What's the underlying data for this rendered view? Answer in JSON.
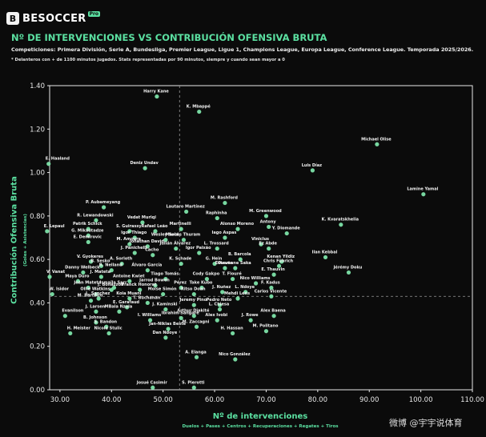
{
  "brand": {
    "name": "BESOCCER",
    "mark": "B",
    "pro": "Pro"
  },
  "header": {
    "title": "Nº DE INTERVENCIONES VS CONTRIBUCIÓN OFENSIVA BRUTA",
    "competitions": "Competiciones: Primera División, Serie A, Bundesliga, Premier League, Ligue 1, Champions League, Europa League, Conference League. Temporada 2025/2026.",
    "note": "* Delanteros con + de 1100 minutos jugados. Stats representadas por 90 minutos, siempre y cuando sean mayor a 0"
  },
  "watermark": "微博 @宇宇说体育",
  "colors": {
    "accent": "#5be0a1",
    "point": "#7de3a9",
    "background": "#0b0b0b"
  },
  "chart_data": {
    "type": "scatter",
    "title": "Nº DE INTERVENCIONES VS CONTRIBUCIÓN OFENSIVA BRUTA",
    "xlabel": "Nº de intervenciones",
    "xlabel_sub": "Duelos + Pases + Centros + Recuperaciones + Regates + Tiros",
    "ylabel": "Contribución Ofensiva Bruta",
    "ylabel_sub": "(Goles + Asistencias)",
    "xlim": [
      28,
      110
    ],
    "ylim": [
      0,
      1.4
    ],
    "xticks": [
      "30.00",
      "40.00",
      "50.00",
      "60.00",
      "70.00",
      "80.00",
      "90.00",
      "100.00",
      "110.00"
    ],
    "yticks": [
      "0.00",
      "0.20",
      "0.40",
      "0.60",
      "0.80",
      "1.00",
      "1.20",
      "1.40"
    ],
    "grid": "off",
    "reference_lines": {
      "x_mean": 53.2,
      "y_mean": 0.43
    },
    "points": [
      {
        "label": "Harry Kane",
        "x": 48.8,
        "y": 1.35
      },
      {
        "label": "K. Mbappé",
        "x": 57.0,
        "y": 1.28
      },
      {
        "label": "Michael Olise",
        "x": 91.5,
        "y": 1.13
      },
      {
        "label": "E. Haaland",
        "x": 27.8,
        "y": 1.04
      },
      {
        "label": "Deniz Undav",
        "x": 46.5,
        "y": 1.02
      },
      {
        "label": "Luis Díaz",
        "x": 79.0,
        "y": 1.01
      },
      {
        "label": "Lamine Yamal",
        "x": 100.5,
        "y": 0.9
      },
      {
        "label": "M. Rashford",
        "x": 62.0,
        "y": 0.86
      },
      {
        "label": "P. Aubameyang",
        "x": 38.5,
        "y": 0.84
      },
      {
        "label": "Lautaro Martínez",
        "x": 54.5,
        "y": 0.82
      },
      {
        "label": "M. Greenwood",
        "x": 70.0,
        "y": 0.8
      },
      {
        "label": "Raphinha",
        "x": 60.5,
        "y": 0.79
      },
      {
        "label": "R. Lewandowski",
        "x": 37.0,
        "y": 0.78
      },
      {
        "label": "Vedat Muriqi",
        "x": 46.0,
        "y": 0.77
      },
      {
        "label": "K. Kvaratskhelia",
        "x": 84.5,
        "y": 0.76
      },
      {
        "label": "Antony",
        "x": 70.5,
        "y": 0.75
      },
      {
        "label": "Patrik Schick",
        "x": 35.5,
        "y": 0.74
      },
      {
        "label": "Martinelli",
        "x": 53.5,
        "y": 0.74
      },
      {
        "label": "Alonso Moreno",
        "x": 64.5,
        "y": 0.74
      },
      {
        "label": "E. Lepaul",
        "x": 27.5,
        "y": 0.73
      },
      {
        "label": "S. Guirassy",
        "x": 43.5,
        "y": 0.73
      },
      {
        "label": "Rafael Leão",
        "x": 48.5,
        "y": 0.73
      },
      {
        "label": "Y. Diomande",
        "x": 74.0,
        "y": 0.72
      },
      {
        "label": "G. Mikautadze",
        "x": 35.5,
        "y": 0.71
      },
      {
        "label": "Igor Thiago",
        "x": 44.5,
        "y": 0.7
      },
      {
        "label": "Iago Aspas",
        "x": 62.0,
        "y": 0.7
      },
      {
        "label": "Wesley Said",
        "x": 50.5,
        "y": 0.69
      },
      {
        "label": "Marcus Thuram",
        "x": 54.0,
        "y": 0.69
      },
      {
        "label": "E. Demirovic",
        "x": 35.5,
        "y": 0.68
      },
      {
        "label": "M. Amoura",
        "x": 43.5,
        "y": 0.67
      },
      {
        "label": "Viniclus",
        "x": 69.0,
        "y": 0.67
      },
      {
        "label": "Jonathan David",
        "x": 47.0,
        "y": 0.66
      },
      {
        "label": "Julián Álvarez",
        "x": 52.5,
        "y": 0.65
      },
      {
        "label": "L. Trossard",
        "x": 60.5,
        "y": 0.65
      },
      {
        "label": "Ez Abde",
        "x": 70.5,
        "y": 0.65
      },
      {
        "label": "J. Panichelli",
        "x": 44.5,
        "y": 0.63
      },
      {
        "label": "Igor Paixão",
        "x": 57.0,
        "y": 0.63
      },
      {
        "label": "Cacho",
        "x": 48.0,
        "y": 0.62
      },
      {
        "label": "Ilan Kebbal",
        "x": 81.5,
        "y": 0.61
      },
      {
        "label": "B. Barcola",
        "x": 65.0,
        "y": 0.6
      },
      {
        "label": "V. Gyokeres",
        "x": 36.0,
        "y": 0.59
      },
      {
        "label": "Kenan Yildiz",
        "x": 73.0,
        "y": 0.59
      },
      {
        "label": "A. Sorloth",
        "x": 42.0,
        "y": 0.58
      },
      {
        "label": "K. Schade",
        "x": 53.5,
        "y": 0.58
      },
      {
        "label": "G. Hein",
        "x": 60.0,
        "y": 0.58
      },
      {
        "label": "B. Sesko",
        "x": 38.0,
        "y": 0.57
      },
      {
        "label": "Chris Führich",
        "x": 72.5,
        "y": 0.57
      },
      {
        "label": "Estevão",
        "x": 62.0,
        "y": 0.56
      },
      {
        "label": "Ousmane Saka",
        "x": 64.0,
        "y": 0.56
      },
      {
        "label": "R. Nelland",
        "x": 40.0,
        "y": 0.55
      },
      {
        "label": "Álvaro García",
        "x": 47.0,
        "y": 0.55
      },
      {
        "label": "Jérémy Doku",
        "x": 86.0,
        "y": 0.54
      },
      {
        "label": "Danny Welbeck",
        "x": 34.5,
        "y": 0.54
      },
      {
        "label": "E. Thauvin",
        "x": 71.5,
        "y": 0.53
      },
      {
        "label": "V. Vanat",
        "x": 28.0,
        "y": 0.52
      },
      {
        "label": "J. Mateta",
        "x": 38.0,
        "y": 0.52
      },
      {
        "label": "Tiago Tomás",
        "x": 50.5,
        "y": 0.51
      },
      {
        "label": "Cody Gakpo",
        "x": 58.5,
        "y": 0.51
      },
      {
        "label": "T. Flouré",
        "x": 63.5,
        "y": 0.51
      },
      {
        "label": "Maya Duro",
        "x": 33.5,
        "y": 0.5
      },
      {
        "label": "Antoine Kwiet",
        "x": 43.5,
        "y": 0.5
      },
      {
        "label": "Nico Williams",
        "x": 68.0,
        "y": 0.49
      },
      {
        "label": "Jarrod Bowen",
        "x": 48.5,
        "y": 0.48
      },
      {
        "label": "Jean Mateta",
        "x": 35.5,
        "y": 0.47
      },
      {
        "label": "Ismaïla Sarr",
        "x": 40.5,
        "y": 0.47
      },
      {
        "label": "Pérez",
        "x": 53.5,
        "y": 0.47
      },
      {
        "label": "Take Kubo",
        "x": 57.5,
        "y": 0.47
      },
      {
        "label": "F. Kadus",
        "x": 71.0,
        "y": 0.47
      },
      {
        "label": "J. Bonazzoli",
        "x": 40.0,
        "y": 0.46
      },
      {
        "label": "Franck Honorat",
        "x": 45.5,
        "y": 0.46
      },
      {
        "label": "J. Nuñez",
        "x": 61.5,
        "y": 0.45
      },
      {
        "label": "L. Ndoye",
        "x": 66.0,
        "y": 0.45
      },
      {
        "label": "W. Isidor",
        "x": 28.5,
        "y": 0.44
      },
      {
        "label": "Ollie Watkins",
        "x": 37.0,
        "y": 0.44
      },
      {
        "label": "Moise Simón",
        "x": 50.0,
        "y": 0.44
      },
      {
        "label": "Ritso Doan",
        "x": 56.0,
        "y": 0.44
      },
      {
        "label": "Carlos Vicente",
        "x": 71.0,
        "y": 0.43
      },
      {
        "label": "L. Sanchez",
        "x": 37.5,
        "y": 0.42
      },
      {
        "label": "Koia Muani",
        "x": 43.5,
        "y": 0.42
      },
      {
        "label": "Mehdi Lens",
        "x": 64.5,
        "y": 0.42
      },
      {
        "label": "M. Barreiro",
        "x": 36.0,
        "y": 0.41
      },
      {
        "label": "T. Buchanan",
        "x": 47.0,
        "y": 0.4
      },
      {
        "label": "Jeremy Pino",
        "x": 56.0,
        "y": 0.39
      },
      {
        "label": "Pedro Neto",
        "x": 61.0,
        "y": 0.39
      },
      {
        "label": "E. Garafaud",
        "x": 43.0,
        "y": 0.38
      },
      {
        "label": "J. Kaminski",
        "x": 50.5,
        "y": 0.37
      },
      {
        "label": "L. Chiesa",
        "x": 61.0,
        "y": 0.37
      },
      {
        "label": "J. Larsen",
        "x": 37.0,
        "y": 0.36
      },
      {
        "label": "MBala Nzola",
        "x": 41.5,
        "y": 0.36
      },
      {
        "label": "Evanilson",
        "x": 31.0,
        "y": 0.34
      },
      {
        "label": "Arthur Diakité",
        "x": 56.0,
        "y": 0.34
      },
      {
        "label": "Ibrahim Sangaré",
        "x": 53.5,
        "y": 0.33
      },
      {
        "label": "Alex Baena",
        "x": 71.5,
        "y": 0.34
      },
      {
        "label": "I. Williams",
        "x": 47.5,
        "y": 0.32
      },
      {
        "label": "Alex Ivobi",
        "x": 60.5,
        "y": 0.32
      },
      {
        "label": "J. Rowe",
        "x": 67.0,
        "y": 0.32
      },
      {
        "label": "B. Johnson",
        "x": 37.0,
        "y": 0.31
      },
      {
        "label": "S. Bandon",
        "x": 39.0,
        "y": 0.29
      },
      {
        "label": "M. Zaccagni",
        "x": 56.5,
        "y": 0.29
      },
      {
        "label": "Jan-Niklas Beste",
        "x": 51.0,
        "y": 0.28
      },
      {
        "label": "M. Politano",
        "x": 70.0,
        "y": 0.27
      },
      {
        "label": "H. Meister",
        "x": 32.0,
        "y": 0.26
      },
      {
        "label": "Nicola Stulic",
        "x": 39.5,
        "y": 0.26
      },
      {
        "label": "H. Hassan",
        "x": 63.5,
        "y": 0.26
      },
      {
        "label": "Dan Ndoye",
        "x": 50.5,
        "y": 0.24
      },
      {
        "label": "A. Elanga",
        "x": 56.5,
        "y": 0.15
      },
      {
        "label": "Nico González",
        "x": 64.0,
        "y": 0.14
      },
      {
        "label": "Josué Casimir",
        "x": 48.0,
        "y": 0.01
      },
      {
        "label": "S. Pierotti",
        "x": 56.0,
        "y": 0.01
      }
    ]
  }
}
